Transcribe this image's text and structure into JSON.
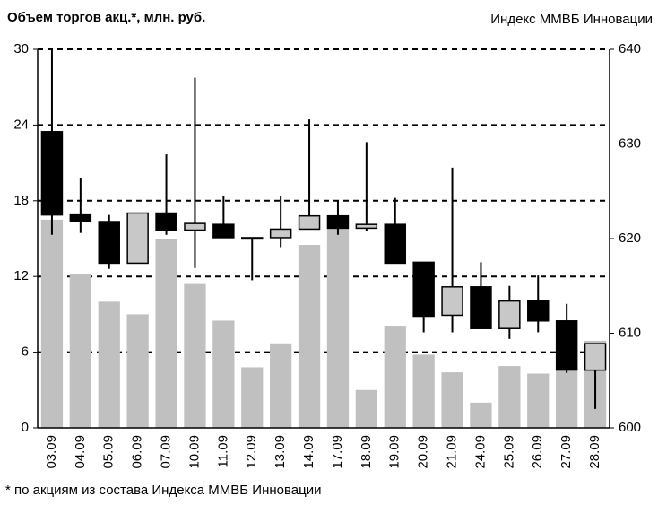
{
  "chart_data": {
    "type": "candlestick",
    "title": "Объем торгов акц.*, млн. руб.",
    "y2_label": "Индекс ММВБ Инновации",
    "footnote": "* по акциям из состава Индекса ММВБ Инновации",
    "categories": [
      "03.09",
      "04.09",
      "05.09",
      "06.09",
      "07.09",
      "10.09",
      "11.09",
      "12.09",
      "13.09",
      "14.09",
      "17.09",
      "18.09",
      "19.09",
      "20.09",
      "21.09",
      "24.09",
      "25.09",
      "26.09",
      "27.09",
      "28.09"
    ],
    "series": [
      {
        "name": "Объем торгов",
        "color": "#c0c0c0",
        "values": [
          16.5,
          12.2,
          10.0,
          9.0,
          15.0,
          11.4,
          8.5,
          4.8,
          6.7,
          14.5,
          15.8,
          3.0,
          8.1,
          5.8,
          4.4,
          2.0,
          4.9,
          4.3,
          4.5,
          6.9
        ]
      }
    ],
    "candles": {
      "axis": "y2",
      "up_color": "#c8c8c8",
      "down_color": "#000000",
      "open": [
        631.3,
        622.5,
        621.8,
        617.4,
        622.7,
        620.9,
        621.5,
        620.1,
        620.1,
        621.0,
        622.4,
        621.1,
        621.5,
        617.5,
        611.9,
        614.9,
        610.5,
        613.4,
        611.3,
        606.1
      ],
      "high": [
        640.0,
        626.4,
        622.5,
        622.7,
        628.9,
        637.0,
        624.5,
        620.1,
        624.5,
        632.6,
        624.0,
        630.2,
        624.3,
        617.5,
        627.5,
        617.5,
        615.0,
        616.1,
        613.1,
        608.9
      ],
      "low": [
        620.4,
        620.6,
        616.8,
        617.4,
        620.4,
        616.9,
        620.1,
        615.6,
        619.1,
        621.0,
        620.4,
        620.8,
        617.4,
        610.1,
        610.1,
        610.5,
        609.4,
        610.1,
        605.8,
        602.0
      ],
      "close": [
        622.5,
        621.8,
        617.4,
        622.7,
        620.9,
        621.6,
        620.1,
        620.1,
        621.0,
        622.4,
        621.1,
        621.5,
        617.4,
        611.8,
        614.9,
        610.5,
        613.4,
        611.3,
        606.1,
        608.9
      ]
    },
    "ylim": [
      0,
      30
    ],
    "yticks": [
      0,
      6,
      12,
      18,
      24,
      30
    ],
    "y2lim": [
      600,
      640
    ],
    "y2ticks": [
      600,
      610,
      620,
      630,
      640
    ],
    "grid": true
  }
}
